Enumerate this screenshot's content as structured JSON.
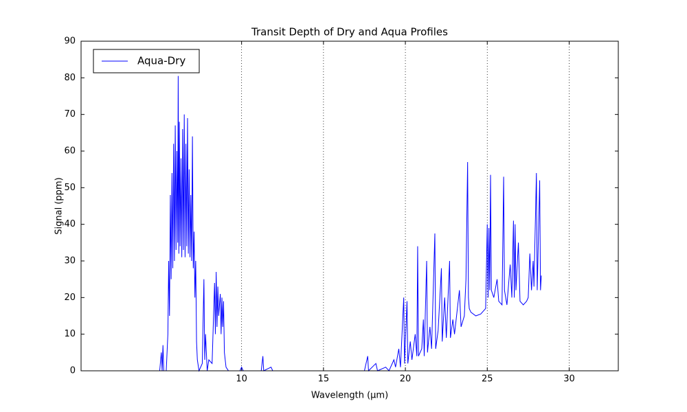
{
  "chart_data": {
    "type": "line",
    "title": "Transit Depth of Dry and Aqua Profiles",
    "x_label": "Wavelength (μm)",
    "y_label": "Signal (ppm)",
    "xlim": [
      0.2,
      33
    ],
    "ylim": [
      0,
      90
    ],
    "xticks": [
      10,
      15,
      20,
      25,
      30
    ],
    "yticks": [
      0,
      10,
      20,
      30,
      40,
      50,
      60,
      70,
      80,
      90
    ],
    "grid": "x",
    "legend": "upper left",
    "x": [
      5.0,
      5.1,
      5.15,
      5.2,
      5.25,
      5.4,
      5.5,
      5.55,
      5.6,
      5.65,
      5.7,
      5.75,
      5.8,
      5.85,
      5.9,
      5.95,
      6.0,
      6.05,
      6.1,
      6.13,
      6.17,
      6.2,
      6.25,
      6.3,
      6.35,
      6.4,
      6.45,
      6.5,
      6.55,
      6.6,
      6.65,
      6.7,
      6.75,
      6.8,
      6.85,
      6.9,
      6.95,
      7.0,
      7.05,
      7.1,
      7.15,
      7.2,
      7.25,
      7.3,
      7.4,
      7.6,
      7.7,
      7.75,
      7.8,
      7.9,
      8.0,
      8.2,
      8.35,
      8.4,
      8.45,
      8.5,
      8.55,
      8.6,
      8.7,
      8.75,
      8.8,
      8.85,
      8.9,
      8.95,
      9.05,
      9.2,
      9.9,
      10.0,
      10.1,
      11.2,
      11.3,
      11.35,
      11.8,
      11.9,
      12.5,
      17.0,
      17.5,
      17.7,
      17.75,
      18.2,
      18.3,
      18.8,
      19.0,
      19.3,
      19.4,
      19.6,
      19.7,
      19.9,
      19.95,
      20.1,
      20.15,
      20.3,
      20.4,
      20.6,
      20.7,
      20.75,
      20.8,
      21.0,
      21.1,
      21.15,
      21.3,
      21.35,
      21.5,
      21.6,
      21.8,
      21.85,
      22.0,
      22.2,
      22.25,
      22.4,
      22.5,
      22.7,
      22.75,
      22.9,
      23.0,
      23.3,
      23.4,
      23.6,
      23.7,
      23.8,
      23.85,
      23.9,
      24.0,
      24.3,
      24.6,
      24.9,
      25.0,
      25.05,
      25.1,
      25.15,
      25.2,
      25.25,
      25.4,
      25.6,
      25.7,
      25.9,
      26.0,
      26.05,
      26.2,
      26.4,
      26.5,
      26.6,
      26.65,
      26.7,
      26.75,
      26.9,
      27.0,
      27.2,
      27.4,
      27.5,
      27.6,
      27.7,
      27.8,
      27.85,
      28.0,
      28.05,
      28.2,
      28.25,
      28.3
    ],
    "series": [
      {
        "name": "Aqua-Dry",
        "color": "#0000ff",
        "values": [
          0,
          5,
          0,
          7,
          0,
          0,
          10,
          30,
          15,
          48,
          25,
          54,
          28,
          62,
          30,
          67,
          33,
          60,
          35,
          80.5,
          32,
          68,
          34,
          58,
          31,
          66,
          33,
          70,
          31,
          62,
          34,
          69,
          32,
          55,
          31,
          48,
          30,
          64,
          28,
          38,
          20,
          30,
          8,
          3,
          0,
          2,
          25,
          3,
          10,
          0,
          3,
          2,
          24,
          10,
          27,
          12,
          23,
          15,
          21,
          10,
          20,
          12,
          19,
          5,
          1,
          0,
          0,
          1,
          0,
          0,
          4,
          0,
          1,
          0,
          0,
          0,
          0,
          4,
          0,
          2,
          0,
          1,
          0,
          3,
          1,
          6,
          1,
          20,
          2,
          19,
          2,
          8,
          3,
          10,
          4,
          34,
          4,
          6,
          14,
          4,
          30,
          5,
          12,
          6,
          37.5,
          6,
          11,
          28,
          8,
          20,
          9,
          30,
          9,
          14,
          10,
          22,
          12,
          15,
          25,
          57,
          20,
          17,
          16,
          15,
          15.5,
          17,
          40,
          20,
          39,
          22,
          53.5,
          22,
          20,
          25,
          19,
          18,
          53,
          22,
          18,
          29,
          20,
          41,
          20,
          40,
          22,
          35,
          19,
          18,
          19,
          20,
          32,
          22,
          30,
          23,
          54,
          22,
          52,
          22,
          26
        ]
      }
    ]
  }
}
